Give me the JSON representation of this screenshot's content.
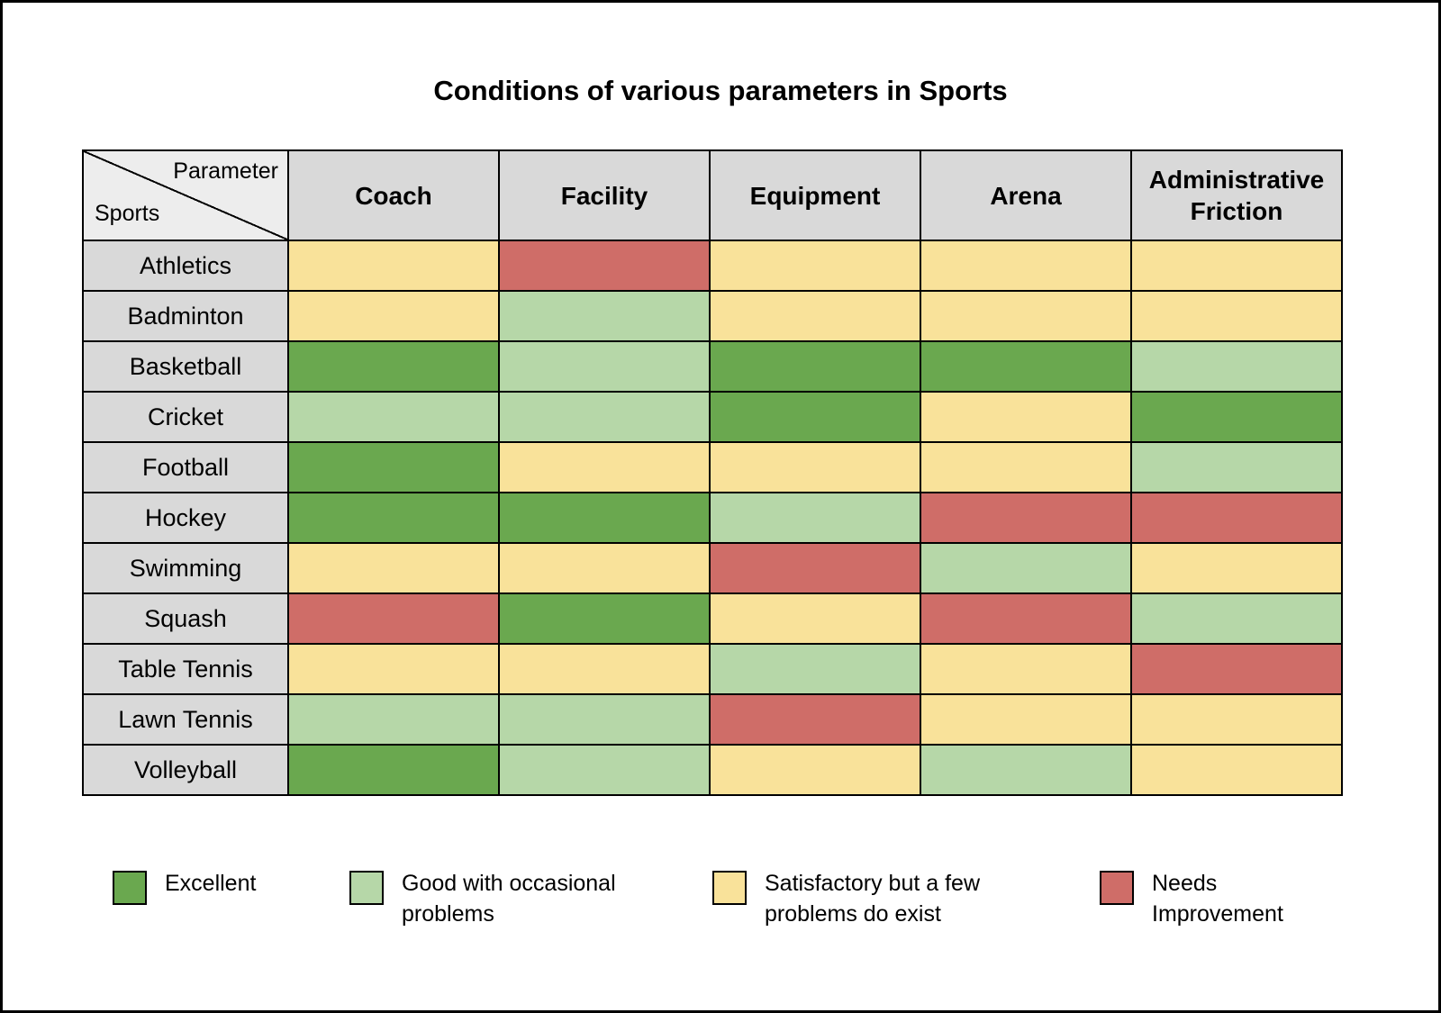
{
  "corner": {
    "parameter_label": "Parameter",
    "sports_label": "Sports"
  },
  "chart_data": {
    "type": "heatmap",
    "title": "Conditions of various parameters in Sports",
    "columns": [
      "Coach",
      "Facility",
      "Equipment",
      "Arena",
      "Administrative Friction"
    ],
    "rows": [
      "Athletics",
      "Badminton",
      "Basketball",
      "Cricket",
      "Football",
      "Hockey",
      "Swimming",
      "Squash",
      "Table Tennis",
      "Lawn Tennis",
      "Volleyball"
    ],
    "values": [
      [
        "satisfactory",
        "needs_improvement",
        "satisfactory",
        "satisfactory",
        "satisfactory"
      ],
      [
        "satisfactory",
        "good",
        "satisfactory",
        "satisfactory",
        "satisfactory"
      ],
      [
        "excellent",
        "good",
        "excellent",
        "excellent",
        "good"
      ],
      [
        "good",
        "good",
        "excellent",
        "satisfactory",
        "excellent"
      ],
      [
        "excellent",
        "satisfactory",
        "satisfactory",
        "satisfactory",
        "good"
      ],
      [
        "excellent",
        "excellent",
        "good",
        "needs_improvement",
        "needs_improvement"
      ],
      [
        "satisfactory",
        "satisfactory",
        "needs_improvement",
        "good",
        "satisfactory"
      ],
      [
        "needs_improvement",
        "excellent",
        "satisfactory",
        "needs_improvement",
        "good"
      ],
      [
        "satisfactory",
        "satisfactory",
        "good",
        "satisfactory",
        "needs_improvement"
      ],
      [
        "good",
        "good",
        "needs_improvement",
        "satisfactory",
        "satisfactory"
      ],
      [
        "excellent",
        "good",
        "satisfactory",
        "good",
        "satisfactory"
      ]
    ],
    "legend": [
      {
        "key": "excellent",
        "label": "Excellent",
        "color": "#6aa84f"
      },
      {
        "key": "good",
        "label": "Good with occasional problems",
        "color": "#b6d7a8"
      },
      {
        "key": "satisfactory",
        "label": "Satisfactory but a few problems do exist",
        "color": "#f9e29a"
      },
      {
        "key": "needs_improvement",
        "label": "Needs Improvement",
        "color": "#cf6d68"
      }
    ]
  },
  "colors": {
    "header_bg": "#d9d9d9",
    "corner_bg": "#ededed",
    "border": "#000000"
  }
}
